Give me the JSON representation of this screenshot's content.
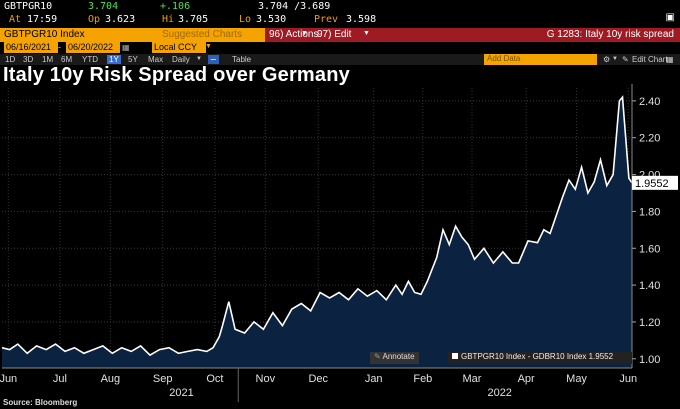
{
  "quote": {
    "ticker": "GBTPGR10",
    "last": "3.704",
    "change": "+.106",
    "bidask": "3.704 /3.689",
    "at_label": "At",
    "time": "17:59",
    "op_label": "Op",
    "open": "3.623",
    "hi_label": "Hi",
    "high": "3.705",
    "lo_label": "Lo",
    "low": "3.530",
    "prev_label": "Prev",
    "prev": "3.598"
  },
  "toolbar": {
    "security": "GBTPGR10 Index",
    "suggested": "Suggested Charts",
    "actions": "96) Actions",
    "edit": "97) Edit",
    "graph_id": "G 1283: Italy 10y risk spread"
  },
  "range": {
    "start": "06/16/2021",
    "end": "06/20/2022",
    "currency": "Local CCY"
  },
  "periods": [
    "1D",
    "3D",
    "1M",
    "6M",
    "YTD",
    "1Y",
    "5Y",
    "Max",
    "Daily"
  ],
  "selected_period": "1Y",
  "table_label": "Table",
  "add_data": "Add Data",
  "edit_chart": "Edit Chart",
  "annotate": "Annotate",
  "legend_text": "GBTPGR10 Index - GDBR10 Index 1.9552",
  "source": "Source: Bloomberg",
  "colors": {
    "line": "#ffffff",
    "fill": "#0b2340",
    "accent": "#f5a300",
    "red": "#9e1b24"
  },
  "chart_data": {
    "type": "area",
    "title": "Italy 10y Risk Spread over Germany",
    "series_name": "GBTPGR10 Index - GDBR10 Index",
    "last_value": "1.9552",
    "ylim": [
      0.95,
      2.47
    ],
    "yticks": [
      1.0,
      1.2,
      1.4,
      1.6,
      1.8,
      2.0,
      2.2,
      2.4
    ],
    "ytick_labels": [
      "1.00",
      "1.20",
      "1.40",
      "1.60",
      "1.80",
      "2.00",
      "2.20",
      "2.40"
    ],
    "xlim": [
      0,
      1
    ],
    "month_ticks": [
      {
        "label": "Jun",
        "x": 0.01
      },
      {
        "label": "Jul",
        "x": 0.092
      },
      {
        "label": "Aug",
        "x": 0.172
      },
      {
        "label": "Sep",
        "x": 0.255
      },
      {
        "label": "Oct",
        "x": 0.338
      },
      {
        "label": "Nov",
        "x": 0.418
      },
      {
        "label": "Dec",
        "x": 0.502
      },
      {
        "label": "Jan",
        "x": 0.59
      },
      {
        "label": "Feb",
        "x": 0.668
      },
      {
        "label": "Mar",
        "x": 0.746
      },
      {
        "label": "Apr",
        "x": 0.832
      },
      {
        "label": "May",
        "x": 0.912
      },
      {
        "label": "Jun",
        "x": 0.994
      }
    ],
    "years": [
      {
        "label": "2021",
        "x": 0.285
      },
      {
        "label": "2022",
        "x": 0.79
      }
    ],
    "x": [
      0,
      0.012,
      0.025,
      0.04,
      0.055,
      0.07,
      0.085,
      0.1,
      0.115,
      0.13,
      0.145,
      0.16,
      0.175,
      0.19,
      0.205,
      0.22,
      0.235,
      0.25,
      0.265,
      0.28,
      0.295,
      0.31,
      0.325,
      0.335,
      0.345,
      0.35,
      0.36,
      0.37,
      0.385,
      0.4,
      0.415,
      0.43,
      0.445,
      0.46,
      0.475,
      0.49,
      0.505,
      0.52,
      0.535,
      0.55,
      0.565,
      0.58,
      0.595,
      0.61,
      0.625,
      0.635,
      0.645,
      0.655,
      0.665,
      0.675,
      0.69,
      0.7,
      0.71,
      0.72,
      0.73,
      0.74,
      0.75,
      0.765,
      0.78,
      0.795,
      0.81,
      0.82,
      0.835,
      0.85,
      0.86,
      0.87,
      0.88,
      0.89,
      0.9,
      0.91,
      0.92,
      0.93,
      0.94,
      0.95,
      0.96,
      0.97,
      0.98,
      0.985,
      0.99,
      0.995,
      1.0
    ],
    "y": [
      1.06,
      1.05,
      1.08,
      1.03,
      1.07,
      1.05,
      1.08,
      1.04,
      1.06,
      1.03,
      1.05,
      1.07,
      1.03,
      1.06,
      1.04,
      1.07,
      1.02,
      1.05,
      1.06,
      1.03,
      1.04,
      1.05,
      1.04,
      1.06,
      1.12,
      1.18,
      1.31,
      1.16,
      1.14,
      1.2,
      1.16,
      1.25,
      1.18,
      1.27,
      1.3,
      1.26,
      1.36,
      1.33,
      1.36,
      1.32,
      1.38,
      1.34,
      1.37,
      1.32,
      1.4,
      1.35,
      1.42,
      1.36,
      1.35,
      1.42,
      1.55,
      1.7,
      1.62,
      1.72,
      1.66,
      1.62,
      1.54,
      1.6,
      1.52,
      1.58,
      1.52,
      1.52,
      1.64,
      1.63,
      1.7,
      1.68,
      1.78,
      1.88,
      1.97,
      1.92,
      2.04,
      1.9,
      1.96,
      2.08,
      1.94,
      2.0,
      2.4,
      2.42,
      2.2,
      1.98,
      1.9552
    ]
  }
}
